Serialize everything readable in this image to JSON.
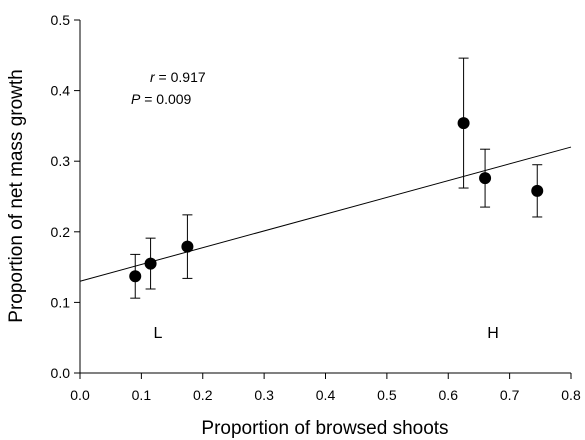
{
  "chart_data": {
    "type": "scatter",
    "xlabel": "Proportion of browsed shoots",
    "ylabel": "Proportion of net mass growth",
    "xlim": [
      0,
      0.8
    ],
    "ylim": [
      0,
      0.5
    ],
    "xticks": [
      {
        "value": 0,
        "label": "0.0"
      },
      0.1,
      0.2,
      0.3,
      0.4,
      0.5,
      0.6,
      0.7,
      0.8
    ],
    "yticks": [
      {
        "value": 0,
        "label": "0.0"
      },
      0.1,
      0.2,
      0.3,
      0.4,
      0.5
    ],
    "series": [
      {
        "color": "#000000",
        "x": [
          0.09,
          0.115,
          0.175,
          0.625,
          0.66,
          0.745
        ],
        "y": [
          0.137,
          0.155,
          0.179,
          0.354,
          0.276,
          0.258
        ],
        "errors": [
          0.031,
          0.036,
          0.045,
          0.092,
          0.041,
          0.037
        ]
      }
    ],
    "fit_line": {
      "x": [
        0,
        0.8
      ],
      "y": [
        0.13,
        0.32
      ]
    },
    "stats": [
      {
        "symbol": "r",
        "text": " = 0.917"
      },
      {
        "symbol": "P",
        "text": " = 0.009"
      }
    ],
    "group_labels": [
      "L",
      "H"
    ]
  }
}
